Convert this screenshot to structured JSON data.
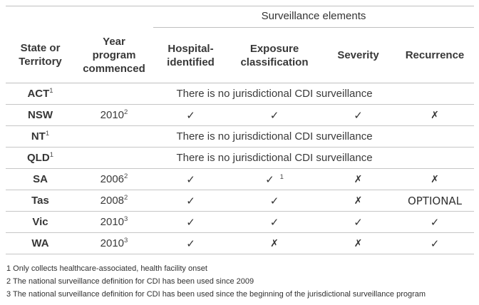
{
  "header": {
    "group_label": "Surveillance elements",
    "col_state": "State or\nTerritory",
    "col_year": "Year\nprogram\ncommenced",
    "col_hospital": "Hospital-\nidentified",
    "col_exposure": "Exposure\nclassification",
    "col_severity": "Severity",
    "col_recurrence": "Recurrence"
  },
  "rows": [
    {
      "state": "ACT",
      "state_sup": "1",
      "span_text": "There is no jurisdictional CDI surveillance"
    },
    {
      "state": "NSW",
      "year": "2010",
      "year_sup": "2",
      "hospital": "✓",
      "exposure": "✓",
      "severity": "✓",
      "recurrence": "✗"
    },
    {
      "state": "NT",
      "state_sup": "1",
      "span_text": "There is no jurisdictional CDI surveillance"
    },
    {
      "state": "QLD",
      "state_sup": "1",
      "span_text": "There is no jurisdictional CDI surveillance"
    },
    {
      "state": "SA",
      "year": "2006",
      "year_sup": "2",
      "hospital": "✓",
      "exposure": "✓",
      "exposure_sup": "1",
      "severity": "✗",
      "recurrence": "✗"
    },
    {
      "state": "Tas",
      "year": "2008",
      "year_sup": "2",
      "hospital": "✓",
      "exposure": "✓",
      "severity": "✗",
      "recurrence": "OPTIONAL"
    },
    {
      "state": "Vic",
      "year": "2010",
      "year_sup": "3",
      "hospital": "✓",
      "exposure": "✓",
      "severity": "✓",
      "recurrence": "✓"
    },
    {
      "state": "WA",
      "year": "2010",
      "year_sup": "3",
      "hospital": "✓",
      "exposure": "✗",
      "severity": "✗",
      "recurrence": "✓"
    }
  ],
  "footnotes": [
    "1 Only collects healthcare-associated, health facility onset",
    "2 The national surveillance definition for CDI has been used since 2009",
    "3 The national surveillance definition for CDI has been used since the beginning of the jurisdictional surveillance program"
  ],
  "colors": {
    "text": "#3a3a3a",
    "rule": "#bfbfbf",
    "background": "#ffffff"
  }
}
